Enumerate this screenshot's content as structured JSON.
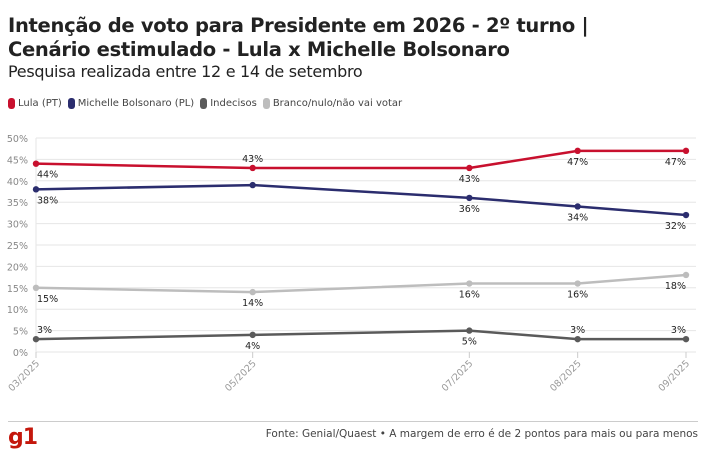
{
  "header": {
    "title_line1": "Intenção de voto para Presidente em 2026 - 2º turno |",
    "title_line2": "Cenário estimulado - Lula x Michelle Bolsonaro",
    "subtitle": "Pesquisa realizada entre 12 e 14 de setembro"
  },
  "footer": {
    "logo": "g1",
    "source": "Fonte: Genial/Quaest • A margem de erro é de 2 pontos para mais ou para menos"
  },
  "chart_data": {
    "type": "line",
    "title": "Intenção de voto para Presidente em 2026 - 2º turno | Cenário estimulado - Lula x Michelle Bolsonaro",
    "subtitle": "Pesquisa realizada entre 12 e 14 de setembro",
    "xlabel": "",
    "ylabel": "",
    "x": [
      "03/2025",
      "05/2025",
      "07/2025",
      "08/2025",
      "09/2025"
    ],
    "x_positions": [
      0,
      2,
      4,
      5,
      6
    ],
    "ylim": [
      0,
      50
    ],
    "yticks": [
      0,
      5,
      10,
      15,
      20,
      25,
      30,
      35,
      40,
      45,
      50
    ],
    "ytick_labels": [
      "0%",
      "5%",
      "10%",
      "15%",
      "20%",
      "25%",
      "30%",
      "35%",
      "40%",
      "45%",
      "50%"
    ],
    "grid": true,
    "legend_placement": "top-left",
    "series": [
      {
        "name": "Lula (PT)",
        "color": "#c8102e",
        "values": [
          44,
          43,
          43,
          47,
          47
        ],
        "label_pos": [
          "below",
          "above",
          "below",
          "below",
          "below"
        ]
      },
      {
        "name": "Michelle Bolsonaro (PL)",
        "color": "#2b2d6e",
        "values": [
          38,
          39,
          36,
          34,
          32
        ],
        "label_pos": [
          "below",
          "none",
          "below",
          "below",
          "below"
        ]
      },
      {
        "name": "Indecisos",
        "color": "#5a5a5a",
        "values": [
          3,
          4,
          5,
          3,
          3
        ],
        "label_pos": [
          "above",
          "below",
          "below",
          "above",
          "above"
        ]
      },
      {
        "name": "Branco/nulo/não vai votar",
        "color": "#bdbdbd",
        "values": [
          15,
          14,
          16,
          16,
          18
        ],
        "label_pos": [
          "below",
          "below",
          "below",
          "below",
          "below"
        ]
      }
    ],
    "data_label_suffix": "%"
  }
}
